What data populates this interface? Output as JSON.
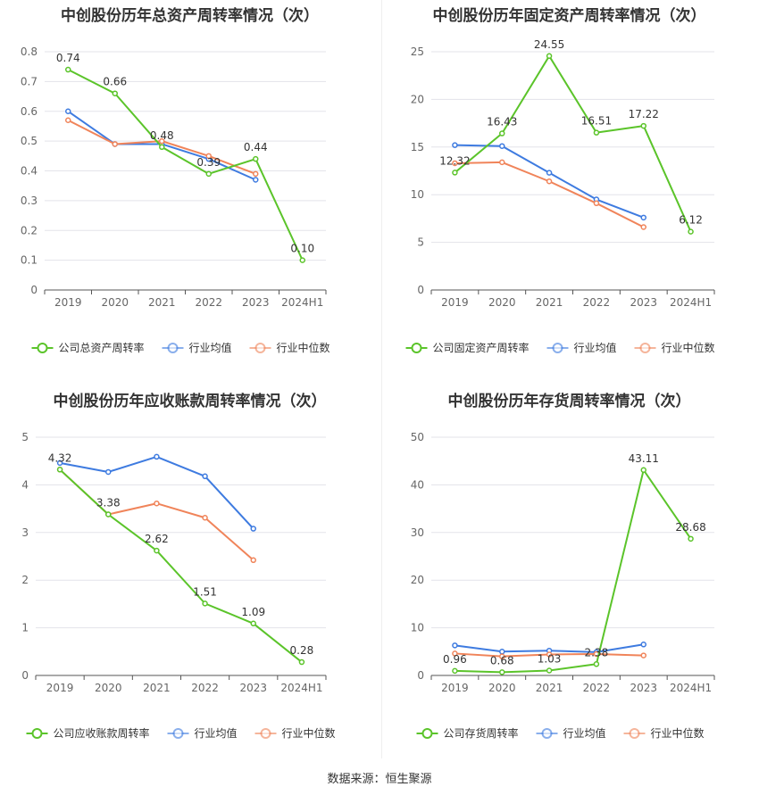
{
  "chart_data": [
    {
      "type": "line",
      "title": "中创股份历年总资产周转率情况（次）",
      "categories": [
        "2019",
        "2020",
        "2021",
        "2022",
        "2023",
        "2024H1"
      ],
      "ylim": [
        0,
        0.8
      ],
      "yticks": [
        "0",
        "0.1",
        "0.2",
        "0.3",
        "0.4",
        "0.5",
        "0.6",
        "0.7",
        "0.8"
      ],
      "series": [
        {
          "name": "公司总资产周转率",
          "color": "#5bc42a",
          "values": [
            0.74,
            0.66,
            0.48,
            0.39,
            0.44,
            0.1
          ],
          "labels": [
            "0.74",
            "0.66",
            "0.48",
            "0.39",
            "0.44",
            "0.10"
          ]
        },
        {
          "name": "行业均值",
          "color": "#3e7be0",
          "values": [
            0.6,
            0.49,
            0.49,
            0.44,
            0.37,
            null
          ]
        },
        {
          "name": "行业中位数",
          "color": "#f0845a",
          "values": [
            0.57,
            0.49,
            0.5,
            0.45,
            0.39,
            null
          ]
        }
      ],
      "grid": true,
      "legend": "bottom"
    },
    {
      "type": "line",
      "title": "中创股份历年固定资产周转率情况（次）",
      "categories": [
        "2019",
        "2020",
        "2021",
        "2022",
        "2023",
        "2024H1"
      ],
      "ylim": [
        0,
        25
      ],
      "yticks": [
        "0",
        "5",
        "10",
        "15",
        "20",
        "25"
      ],
      "series": [
        {
          "name": "公司固定资产周转率",
          "color": "#5bc42a",
          "values": [
            12.32,
            16.43,
            24.55,
            16.51,
            17.22,
            6.12
          ],
          "labels": [
            "12.32",
            "16.43",
            "24.55",
            "16.51",
            "17.22",
            "6.12"
          ]
        },
        {
          "name": "行业均值",
          "color": "#3e7be0",
          "values": [
            15.2,
            15.1,
            12.3,
            9.5,
            7.6,
            null
          ]
        },
        {
          "name": "行业中位数",
          "color": "#f0845a",
          "values": [
            13.3,
            13.4,
            11.4,
            9.1,
            6.6,
            null
          ]
        }
      ],
      "grid": true,
      "legend": "bottom"
    },
    {
      "type": "line",
      "title": "中创股份历年应收账款周转率情况（次）",
      "categories": [
        "2019",
        "2020",
        "2021",
        "2022",
        "2023",
        "2024H1"
      ],
      "ylim": [
        0,
        5
      ],
      "yticks": [
        "0",
        "1",
        "2",
        "3",
        "4",
        "5"
      ],
      "series": [
        {
          "name": "公司应收账款周转率",
          "color": "#5bc42a",
          "values": [
            4.32,
            3.38,
            2.62,
            1.51,
            1.09,
            0.28
          ],
          "labels": [
            "4.32",
            "3.38",
            "2.62",
            "1.51",
            "1.09",
            "0.28"
          ]
        },
        {
          "name": "行业均值",
          "color": "#3e7be0",
          "values": [
            4.46,
            4.27,
            4.59,
            4.18,
            3.08,
            null
          ]
        },
        {
          "name": "行业中位数",
          "color": "#f0845a",
          "values": [
            4.32,
            3.38,
            3.61,
            3.31,
            2.42,
            null
          ]
        }
      ],
      "grid": true,
      "legend": "bottom"
    },
    {
      "type": "line",
      "title": "中创股份历年存货周转率情况（次）",
      "categories": [
        "2019",
        "2020",
        "2021",
        "2022",
        "2023",
        "2024H1"
      ],
      "ylim": [
        0,
        50
      ],
      "yticks": [
        "0",
        "10",
        "20",
        "30",
        "40",
        "50"
      ],
      "series": [
        {
          "name": "公司存货周转率",
          "color": "#5bc42a",
          "values": [
            0.96,
            0.68,
            1.03,
            2.38,
            43.11,
            28.68
          ],
          "labels": [
            "0.96",
            "0.68",
            "1.03",
            "2.38",
            "43.11",
            "28.68"
          ]
        },
        {
          "name": "行业均值",
          "color": "#3e7be0",
          "values": [
            6.3,
            5.0,
            5.2,
            4.9,
            6.5,
            null
          ]
        },
        {
          "name": "行业中位数",
          "color": "#f0845a",
          "values": [
            4.6,
            4.0,
            4.4,
            4.5,
            4.2,
            null
          ]
        }
      ],
      "grid": true,
      "legend": "bottom"
    }
  ],
  "footer": {
    "source": "数据来源：恒生聚源"
  }
}
